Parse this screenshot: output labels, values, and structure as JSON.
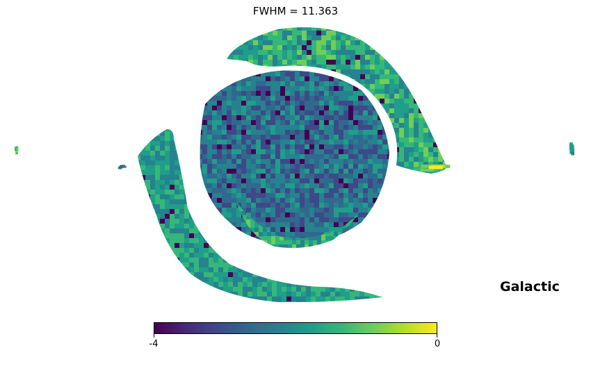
{
  "chart_data": {
    "type": "heatmap",
    "title": "FWHM = 11.363",
    "projection": "orthographic sky map (healpix)",
    "coordinate_system": "Galactic",
    "colormap": "viridis",
    "colorbar": {
      "min": -4,
      "max": 0,
      "tick_labels": [
        "-4",
        "0"
      ],
      "orientation": "horizontal",
      "placement": "bottom"
    },
    "grid": false
  },
  "colors": {
    "viridis": [
      "#440154",
      "#482878",
      "#3e4989",
      "#31688e",
      "#26828e",
      "#1f9e89",
      "#35b779",
      "#6ece58",
      "#b5de2b",
      "#fde725"
    ]
  }
}
